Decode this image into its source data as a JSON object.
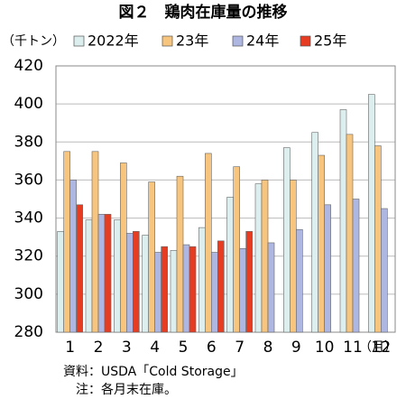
{
  "chart_data": {
    "type": "bar",
    "title": "図２　鶏肉在庫量の推移",
    "y_label": "（千トン）",
    "x_label": "（月）",
    "notes": [
      "資料：USDA「Cold Storage」",
      "注：各月末在庫。"
    ],
    "categories": [
      "1",
      "2",
      "3",
      "4",
      "5",
      "6",
      "7",
      "8",
      "9",
      "10",
      "11",
      "12"
    ],
    "series": [
      {
        "name": "2022年",
        "color": "#dcefee",
        "values": [
          333,
          339,
          339,
          331,
          323,
          335,
          351,
          358,
          377,
          385,
          397,
          405
        ]
      },
      {
        "name": "23年",
        "color": "#f7c57e",
        "values": [
          375,
          375,
          369,
          359,
          362,
          374,
          367,
          360,
          360,
          373,
          384,
          378
        ]
      },
      {
        "name": "24年",
        "color": "#aeb6e2",
        "values": [
          360,
          342,
          332,
          322,
          326,
          322,
          324,
          327,
          334,
          347,
          350,
          345
        ]
      },
      {
        "name": "25年",
        "color": "#e63c22",
        "values": [
          347,
          342,
          333,
          325,
          325,
          328,
          333,
          null,
          null,
          null,
          null,
          null
        ]
      }
    ],
    "ylim": [
      280,
      420
    ],
    "yticks": [
      280,
      300,
      320,
      340,
      360,
      380,
      400,
      420
    ],
    "grid": true
  }
}
